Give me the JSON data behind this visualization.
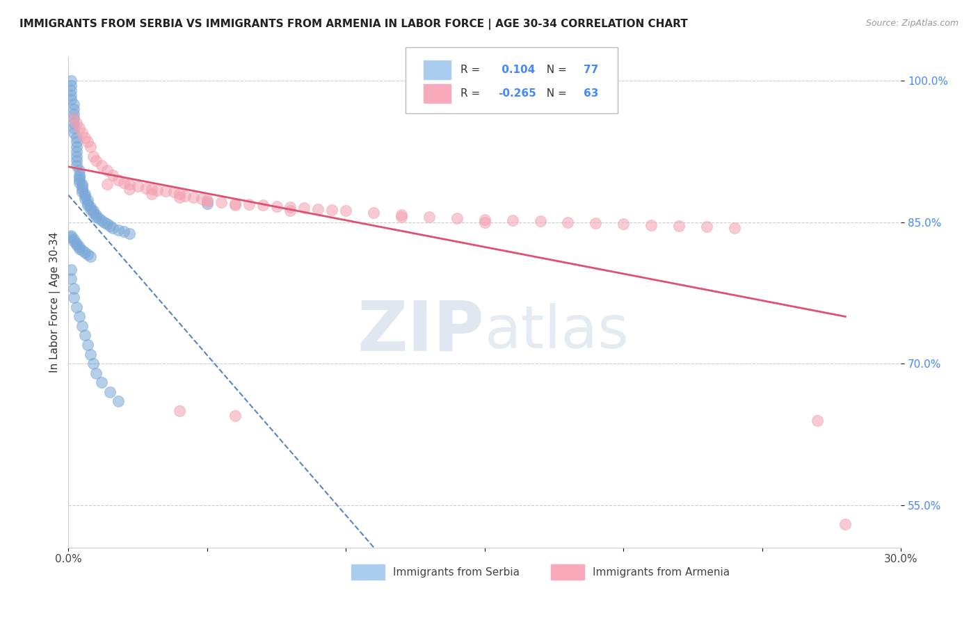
{
  "title": "IMMIGRANTS FROM SERBIA VS IMMIGRANTS FROM ARMENIA IN LABOR FORCE | AGE 30-34 CORRELATION CHART",
  "source": "Source: ZipAtlas.com",
  "ylabel": "In Labor Force | Age 30-34",
  "xlim": [
    0.0,
    0.3
  ],
  "ylim": [
    0.505,
    1.025
  ],
  "ytick_positions": [
    0.55,
    0.7,
    0.85,
    1.0
  ],
  "ytick_labels": [
    "55.0%",
    "70.0%",
    "85.0%",
    "100.0%"
  ],
  "serbia_color": "#7aa8d8",
  "armenia_color": "#f4a0b0",
  "serbia_line_color": "#4477bb",
  "armenia_line_color": "#e05070",
  "serbia_R": 0.104,
  "serbia_N": 77,
  "armenia_R": -0.265,
  "armenia_N": 63,
  "watermark_zip": "ZIP",
  "watermark_atlas": "atlas",
  "serbia_x": [
    0.001,
    0.001,
    0.001,
    0.001,
    0.001,
    0.002,
    0.002,
    0.002,
    0.002,
    0.002,
    0.002,
    0.002,
    0.003,
    0.003,
    0.003,
    0.003,
    0.003,
    0.003,
    0.003,
    0.004,
    0.004,
    0.004,
    0.004,
    0.004,
    0.005,
    0.005,
    0.005,
    0.005,
    0.006,
    0.006,
    0.006,
    0.007,
    0.007,
    0.007,
    0.008,
    0.008,
    0.009,
    0.009,
    0.01,
    0.01,
    0.011,
    0.012,
    0.013,
    0.014,
    0.015,
    0.016,
    0.018,
    0.02,
    0.022,
    0.001,
    0.001,
    0.002,
    0.002,
    0.003,
    0.003,
    0.004,
    0.004,
    0.005,
    0.006,
    0.007,
    0.008,
    0.05,
    0.001,
    0.001,
    0.002,
    0.002,
    0.003,
    0.004,
    0.005,
    0.006,
    0.007,
    0.008,
    0.009,
    0.01,
    0.012,
    0.015,
    0.018
  ],
  "serbia_y": [
    1.0,
    0.995,
    0.99,
    0.985,
    0.98,
    0.975,
    0.97,
    0.965,
    0.96,
    0.955,
    0.95,
    0.945,
    0.94,
    0.935,
    0.93,
    0.925,
    0.92,
    0.915,
    0.91,
    0.905,
    0.9,
    0.898,
    0.895,
    0.892,
    0.89,
    0.888,
    0.885,
    0.882,
    0.88,
    0.878,
    0.875,
    0.873,
    0.87,
    0.868,
    0.866,
    0.864,
    0.862,
    0.86,
    0.858,
    0.856,
    0.854,
    0.852,
    0.85,
    0.848,
    0.846,
    0.844,
    0.842,
    0.84,
    0.838,
    0.836,
    0.834,
    0.832,
    0.83,
    0.828,
    0.826,
    0.824,
    0.822,
    0.82,
    0.818,
    0.816,
    0.814,
    0.87,
    0.8,
    0.79,
    0.78,
    0.77,
    0.76,
    0.75,
    0.74,
    0.73,
    0.72,
    0.71,
    0.7,
    0.69,
    0.68,
    0.67,
    0.66
  ],
  "armenia_x": [
    0.002,
    0.003,
    0.004,
    0.005,
    0.006,
    0.007,
    0.008,
    0.009,
    0.01,
    0.012,
    0.014,
    0.016,
    0.018,
    0.02,
    0.022,
    0.025,
    0.028,
    0.03,
    0.032,
    0.035,
    0.038,
    0.04,
    0.042,
    0.045,
    0.048,
    0.05,
    0.055,
    0.06,
    0.065,
    0.07,
    0.075,
    0.08,
    0.085,
    0.09,
    0.095,
    0.1,
    0.11,
    0.12,
    0.13,
    0.14,
    0.15,
    0.16,
    0.17,
    0.18,
    0.19,
    0.2,
    0.21,
    0.22,
    0.23,
    0.24,
    0.014,
    0.022,
    0.03,
    0.04,
    0.05,
    0.06,
    0.08,
    0.12,
    0.15,
    0.04,
    0.06,
    0.27,
    0.28
  ],
  "armenia_y": [
    0.96,
    0.955,
    0.95,
    0.945,
    0.94,
    0.935,
    0.93,
    0.92,
    0.915,
    0.91,
    0.905,
    0.9,
    0.895,
    0.892,
    0.89,
    0.888,
    0.886,
    0.885,
    0.884,
    0.883,
    0.882,
    0.88,
    0.878,
    0.876,
    0.875,
    0.873,
    0.871,
    0.87,
    0.869,
    0.868,
    0.867,
    0.866,
    0.865,
    0.864,
    0.863,
    0.862,
    0.86,
    0.858,
    0.856,
    0.854,
    0.853,
    0.852,
    0.851,
    0.85,
    0.849,
    0.848,
    0.847,
    0.846,
    0.845,
    0.844,
    0.89,
    0.885,
    0.88,
    0.876,
    0.872,
    0.868,
    0.862,
    0.856,
    0.85,
    0.65,
    0.645,
    0.64,
    0.53
  ]
}
